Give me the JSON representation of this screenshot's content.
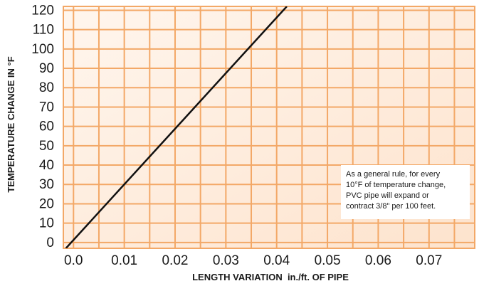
{
  "chart_data": {
    "type": "line",
    "title": "",
    "xlabel": "LENGTH VARIATION  in./ft. OF PIPE",
    "ylabel": "TEMPERATURE CHANGE IN °F",
    "xlim": [
      -0.002,
      0.079
    ],
    "ylim": [
      -3,
      122
    ],
    "x_ticks": [
      0.0,
      0.01,
      0.02,
      0.03,
      0.04,
      0.05,
      0.06,
      0.07
    ],
    "x_tick_labels": [
      "0.0",
      "0.01",
      "0.02",
      "0.03",
      "0.04",
      "0.05",
      "0.06",
      "0.07"
    ],
    "y_ticks": [
      0,
      10,
      20,
      30,
      40,
      50,
      60,
      70,
      80,
      90,
      100,
      110,
      120
    ],
    "y_tick_labels": [
      "0",
      "10",
      "20",
      "30",
      "40",
      "50",
      "60",
      "70",
      "80",
      "90",
      "100",
      "110",
      "120"
    ],
    "grid": true,
    "series": [
      {
        "x": [
          -0.0015,
          0.042
        ],
        "y": [
          -3,
          122
        ]
      }
    ],
    "annotation": {
      "lines": [
        "As a general rule, for every",
        "10°F of temperature change,",
        "PVC pipe will expand or",
        "contract 3/8\" per 100 feet."
      ]
    },
    "colors": {
      "grid": "#f3a867",
      "background_light": "#fff4ea",
      "background_dark": "#fde0c8",
      "line": "#111111"
    }
  }
}
